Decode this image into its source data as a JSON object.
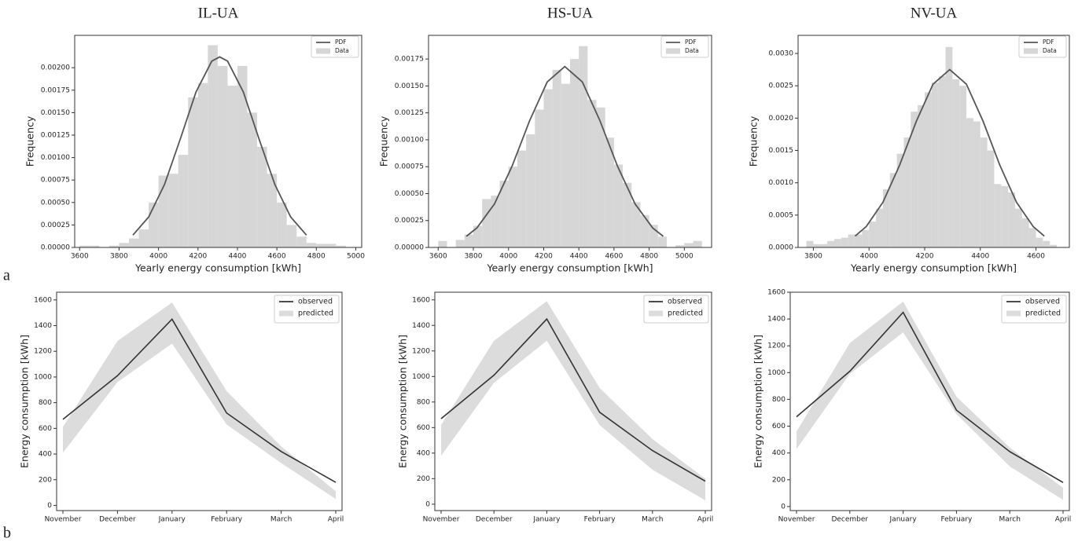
{
  "chart_data": [
    {
      "type": "histogram",
      "panel": "a",
      "title": "IL-UA",
      "xlabel": "Yearly energy consumption [kWh]",
      "ylabel": "Frequency",
      "legend": "upper right",
      "xlim": [
        3575,
        5030
      ],
      "ylim": [
        0,
        0.00236
      ],
      "xticks": [
        3600,
        3800,
        4000,
        4200,
        4400,
        4600,
        4800,
        5000
      ],
      "yticks": [
        {
          "value": 0,
          "label": "0.00000"
        },
        {
          "value": 0.00025,
          "label": "0.00025"
        },
        {
          "value": 0.0005,
          "label": "0.00050"
        },
        {
          "value": 0.00075,
          "label": "0.00075"
        },
        {
          "value": 0.001,
          "label": "0.00100"
        },
        {
          "value": 0.00125,
          "label": "0.00125"
        },
        {
          "value": 0.0015,
          "label": "0.00150"
        },
        {
          "value": 0.00175,
          "label": "0.00175"
        },
        {
          "value": 0.002,
          "label": "0.00200"
        }
      ],
      "series": [
        {
          "name": "PDF",
          "color": "#555555",
          "x": [
            3870,
            3950,
            4030,
            4110,
            4190,
            4270,
            4310,
            4350,
            4430,
            4510,
            4590,
            4670,
            4750
          ],
          "values": [
            0.000137,
            0.000339,
            0.000699,
            0.001204,
            0.00173,
            0.002073,
            0.00212,
            0.002073,
            0.00173,
            0.001204,
            0.000699,
            0.000339,
            0.000137
          ]
        },
        {
          "name": "Data",
          "color": "#d6d6d6",
          "bins": [
            3600,
            3650,
            3700,
            3750,
            3800,
            3850,
            3900,
            3950,
            4000,
            4050,
            4100,
            4150,
            4200,
            4250,
            4300,
            4350,
            4400,
            4450,
            4500,
            4550,
            4600,
            4650,
            4700,
            4750,
            4800,
            4850,
            4900,
            4950,
            5000
          ],
          "values": [
            2e-05,
            2e-05,
            0,
            2e-05,
            5e-05,
            0.0001,
            0.0002,
            0.0005,
            0.0008,
            0.00082,
            0.00103,
            0.00167,
            0.00183,
            0.00225,
            0.00202,
            0.0018,
            0.00202,
            0.0015,
            0.00112,
            0.00082,
            0.0005,
            0.00025,
            0.00012,
            5e-05,
            4e-05,
            4e-05,
            2e-05,
            0
          ]
        }
      ]
    },
    {
      "type": "histogram",
      "title": "HS-UA",
      "xlabel": "Yearly energy consumption [kWh]",
      "ylabel": "Frequency",
      "legend": "upper right",
      "xlim": [
        3545,
        5155
      ],
      "ylim": [
        0,
        0.00197
      ],
      "xticks": [
        3600,
        3800,
        4000,
        4200,
        4400,
        4600,
        4800,
        5000
      ],
      "yticks": [
        {
          "value": 0,
          "label": "0.00000"
        },
        {
          "value": 0.00025,
          "label": "0.00025"
        },
        {
          "value": 0.0005,
          "label": "0.00050"
        },
        {
          "value": 0.00075,
          "label": "0.00075"
        },
        {
          "value": 0.001,
          "label": "0.00100"
        },
        {
          "value": 0.00125,
          "label": "0.00125"
        },
        {
          "value": 0.0015,
          "label": "0.00150"
        },
        {
          "value": 0.00175,
          "label": "0.00175"
        }
      ],
      "series": [
        {
          "name": "PDF",
          "color": "#555555",
          "x": [
            3760,
            3820,
            3920,
            4020,
            4120,
            4220,
            4320,
            4420,
            4520,
            4620,
            4720,
            4820,
            4880
          ],
          "values": [
            0.000103,
            0.000181,
            0.000404,
            0.000754,
            0.001177,
            0.001537,
            0.00168,
            0.001537,
            0.001177,
            0.000754,
            0.000404,
            0.000181,
            0.000103
          ]
        },
        {
          "name": "Data",
          "color": "#d6d6d6",
          "bins": [
            3600,
            3650,
            3700,
            3750,
            3800,
            3850,
            3900,
            3950,
            4000,
            4050,
            4100,
            4150,
            4200,
            4250,
            4300,
            4350,
            4400,
            4450,
            4500,
            4550,
            4600,
            4650,
            4700,
            4750,
            4800,
            4850,
            4900,
            4950,
            5000,
            5050,
            5100
          ],
          "values": [
            6e-05,
            0,
            7e-05,
            0.00012,
            0.0002,
            0.00045,
            0.00048,
            0.00062,
            0.00075,
            0.0009,
            0.00105,
            0.00128,
            0.00147,
            0.00165,
            0.00152,
            0.00175,
            0.00187,
            0.00137,
            0.0013,
            0.00102,
            0.00077,
            0.0006,
            0.00042,
            0.0003,
            0.00021,
            0.0001,
            0,
            2e-05,
            4e-05,
            6e-05
          ]
        }
      ]
    },
    {
      "type": "histogram",
      "title": "NV-UA",
      "xlabel": "Yearly energy consumption [kWh]",
      "ylabel": "Frequency",
      "legend": "upper right",
      "xlim": [
        3745,
        4720
      ],
      "ylim": [
        0,
        0.00328
      ],
      "xticks": [
        3800,
        4000,
        4200,
        4400,
        4600
      ],
      "yticks": [
        {
          "value": 0,
          "label": "0.0000"
        },
        {
          "value": 0.0005,
          "label": "0.0005"
        },
        {
          "value": 0.001,
          "label": "0.0010"
        },
        {
          "value": 0.0015,
          "label": "0.0015"
        },
        {
          "value": 0.002,
          "label": "0.0020"
        },
        {
          "value": 0.0025,
          "label": "0.0025"
        },
        {
          "value": 0.003,
          "label": "0.0030"
        }
      ],
      "series": [
        {
          "name": "PDF",
          "color": "#555555",
          "x": [
            3950,
            3990,
            4050,
            4110,
            4170,
            4230,
            4290,
            4350,
            4410,
            4470,
            4530,
            4590,
            4630
          ],
          "values": [
            0.000176,
            0.000323,
            0.000699,
            0.001273,
            0.001951,
            0.002525,
            0.00275,
            0.002525,
            0.001951,
            0.001273,
            0.000699,
            0.000323,
            0.000176
          ]
        },
        {
          "name": "Data",
          "color": "#d6d6d6",
          "bins": [
            3775,
            3800,
            3825,
            3850,
            3875,
            3900,
            3925,
            3950,
            3975,
            4000,
            4025,
            4050,
            4075,
            4100,
            4125,
            4150,
            4175,
            4200,
            4225,
            4250,
            4275,
            4300,
            4325,
            4350,
            4375,
            4400,
            4425,
            4450,
            4475,
            4500,
            4525,
            4550,
            4575,
            4600,
            4625,
            4650,
            4675
          ],
          "values": [
            0.0001,
            5e-05,
            5e-05,
            0.0001,
            0.00013,
            0.00015,
            0.0002,
            0.0002,
            0.00027,
            0.0004,
            0.0006,
            0.0009,
            0.00115,
            0.00145,
            0.0017,
            0.0021,
            0.0022,
            0.0024,
            0.00255,
            0.00265,
            0.0031,
            0.0026,
            0.0025,
            0.002,
            0.00195,
            0.0017,
            0.0015,
            0.00098,
            0.00095,
            0.00085,
            0.0006,
            0.00045,
            0.0003,
            0.00015,
            0.0001,
            4e-05
          ]
        }
      ]
    },
    {
      "type": "line",
      "panel": "b",
      "ylabel": "Energy consumption [kWh]",
      "legend": "upper right",
      "categories": [
        "November",
        "December",
        "January",
        "February",
        "March",
        "April"
      ],
      "ylim": [
        -40,
        1660
      ],
      "yticks": [
        0,
        200,
        400,
        600,
        800,
        1000,
        1200,
        1400,
        1600
      ],
      "series": [
        {
          "name": "observed",
          "color": "#333333",
          "values": [
            670,
            1010,
            1450,
            720,
            420,
            180
          ]
        },
        {
          "name": "predicted",
          "color": "#dcdcdc",
          "lower": [
            410,
            960,
            1260,
            630,
            330,
            50
          ],
          "upper": [
            610,
            1280,
            1580,
            890,
            460,
            110
          ]
        }
      ]
    },
    {
      "type": "line",
      "ylabel": "Energy consumption [kWh]",
      "legend": "upper right",
      "categories": [
        "November",
        "December",
        "January",
        "February",
        "March",
        "April"
      ],
      "ylim": [
        -50,
        1660
      ],
      "yticks": [
        0,
        200,
        400,
        600,
        800,
        1000,
        1200,
        1400,
        1600
      ],
      "series": [
        {
          "name": "observed",
          "color": "#333333",
          "values": [
            670,
            1010,
            1450,
            720,
            420,
            180
          ]
        },
        {
          "name": "predicted",
          "color": "#dcdcdc",
          "lower": [
            380,
            950,
            1280,
            620,
            270,
            30
          ],
          "upper": [
            620,
            1280,
            1590,
            910,
            510,
            200
          ]
        }
      ]
    },
    {
      "type": "line",
      "ylabel": "Energy consumption [kWh]",
      "legend": "upper right",
      "categories": [
        "November",
        "December",
        "January",
        "February",
        "March",
        "April"
      ],
      "ylim": [
        -30,
        1600
      ],
      "yticks": [
        0,
        200,
        400,
        600,
        800,
        1000,
        1200,
        1400,
        1600
      ],
      "series": [
        {
          "name": "observed",
          "color": "#333333",
          "values": [
            670,
            1010,
            1450,
            720,
            410,
            180
          ]
        },
        {
          "name": "predicted",
          "color": "#dcdcdc",
          "lower": [
            430,
            990,
            1300,
            690,
            300,
            50
          ],
          "upper": [
            560,
            1220,
            1530,
            820,
            440,
            140
          ]
        }
      ]
    }
  ]
}
